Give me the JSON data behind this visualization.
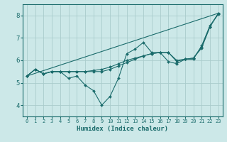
{
  "xlabel": "Humidex (Indice chaleur)",
  "xlim": [
    -0.5,
    23.5
  ],
  "ylim": [
    3.5,
    8.5
  ],
  "yticks": [
    4,
    5,
    6,
    7,
    8
  ],
  "xticks": [
    0,
    1,
    2,
    3,
    4,
    5,
    6,
    7,
    8,
    9,
    10,
    11,
    12,
    13,
    14,
    15,
    16,
    17,
    18,
    19,
    20,
    21,
    22,
    23
  ],
  "bg_color": "#cce8e8",
  "grid_color": "#aacccc",
  "line_color": "#1a6b6b",
  "line1": {
    "x": [
      0,
      1,
      2,
      3,
      4,
      5,
      6,
      7,
      8,
      9,
      10,
      11,
      12,
      13,
      14,
      15,
      16,
      17,
      18,
      19,
      20,
      21,
      22,
      23
    ],
    "y": [
      5.3,
      5.6,
      5.4,
      5.5,
      5.5,
      5.2,
      5.3,
      4.9,
      4.65,
      4.0,
      4.4,
      5.2,
      6.3,
      6.5,
      6.8,
      6.35,
      6.35,
      5.95,
      5.85,
      6.05,
      6.05,
      6.65,
      7.55,
      8.05
    ]
  },
  "line2": {
    "x": [
      0,
      1,
      2,
      3,
      4,
      5,
      6,
      7,
      8,
      9,
      10,
      11,
      12,
      13,
      14,
      15,
      16,
      17,
      18,
      19,
      20,
      21,
      22,
      23
    ],
    "y": [
      5.3,
      5.6,
      5.4,
      5.5,
      5.5,
      5.5,
      5.5,
      5.5,
      5.55,
      5.6,
      5.7,
      5.85,
      6.0,
      6.1,
      6.2,
      6.3,
      6.35,
      6.35,
      6.0,
      6.05,
      6.1,
      6.55,
      7.5,
      8.1
    ]
  },
  "line3": {
    "x": [
      0,
      1,
      2,
      3,
      4,
      5,
      6,
      7,
      8,
      9,
      10,
      11,
      12,
      13,
      14,
      15,
      16,
      17,
      18,
      19,
      20,
      21,
      22,
      23
    ],
    "y": [
      5.3,
      5.6,
      5.4,
      5.5,
      5.5,
      5.5,
      5.5,
      5.5,
      5.5,
      5.5,
      5.6,
      5.75,
      5.9,
      6.05,
      6.2,
      6.3,
      6.35,
      6.35,
      5.95,
      6.05,
      6.1,
      6.6,
      7.5,
      8.1
    ]
  },
  "line_diag": {
    "x": [
      0,
      23
    ],
    "y": [
      5.3,
      8.1
    ]
  }
}
